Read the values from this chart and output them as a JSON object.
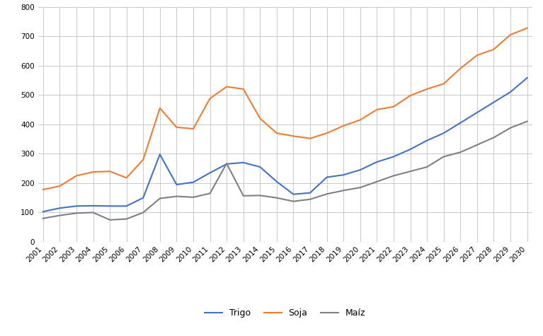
{
  "years": [
    2001,
    2002,
    2003,
    2004,
    2005,
    2006,
    2007,
    2008,
    2009,
    2010,
    2011,
    2012,
    2013,
    2014,
    2015,
    2016,
    2017,
    2018,
    2019,
    2020,
    2021,
    2022,
    2023,
    2024,
    2025,
    2026,
    2027,
    2028,
    2029,
    2030
  ],
  "trigo": [
    103,
    115,
    122,
    123,
    122,
    122,
    150,
    298,
    195,
    203,
    235,
    265,
    270,
    255,
    205,
    162,
    167,
    220,
    228,
    245,
    272,
    290,
    315,
    345,
    370,
    405,
    440,
    475,
    510,
    558
  ],
  "soja": [
    178,
    190,
    225,
    238,
    240,
    218,
    280,
    455,
    390,
    385,
    488,
    528,
    520,
    420,
    370,
    360,
    352,
    370,
    395,
    415,
    450,
    460,
    498,
    520,
    538,
    590,
    635,
    655,
    705,
    727
  ],
  "maiz": [
    80,
    90,
    98,
    100,
    75,
    78,
    100,
    148,
    155,
    152,
    165,
    267,
    157,
    158,
    150,
    138,
    145,
    163,
    175,
    185,
    205,
    225,
    240,
    255,
    290,
    305,
    330,
    355,
    388,
    410
  ],
  "trigo_color": "#4472C4",
  "soja_color": "#ED7D31",
  "maiz_color": "#808080",
  "ylim": [
    0,
    800
  ],
  "yticks": [
    0,
    100,
    200,
    300,
    400,
    500,
    600,
    700,
    800
  ],
  "grid_color": "#C8C8C8",
  "bg_color": "#FFFFFF",
  "legend_labels": [
    "Trigo",
    "Soja",
    "Maíz"
  ],
  "line_width": 1.5,
  "tick_fontsize": 7.5,
  "legend_fontsize": 9
}
